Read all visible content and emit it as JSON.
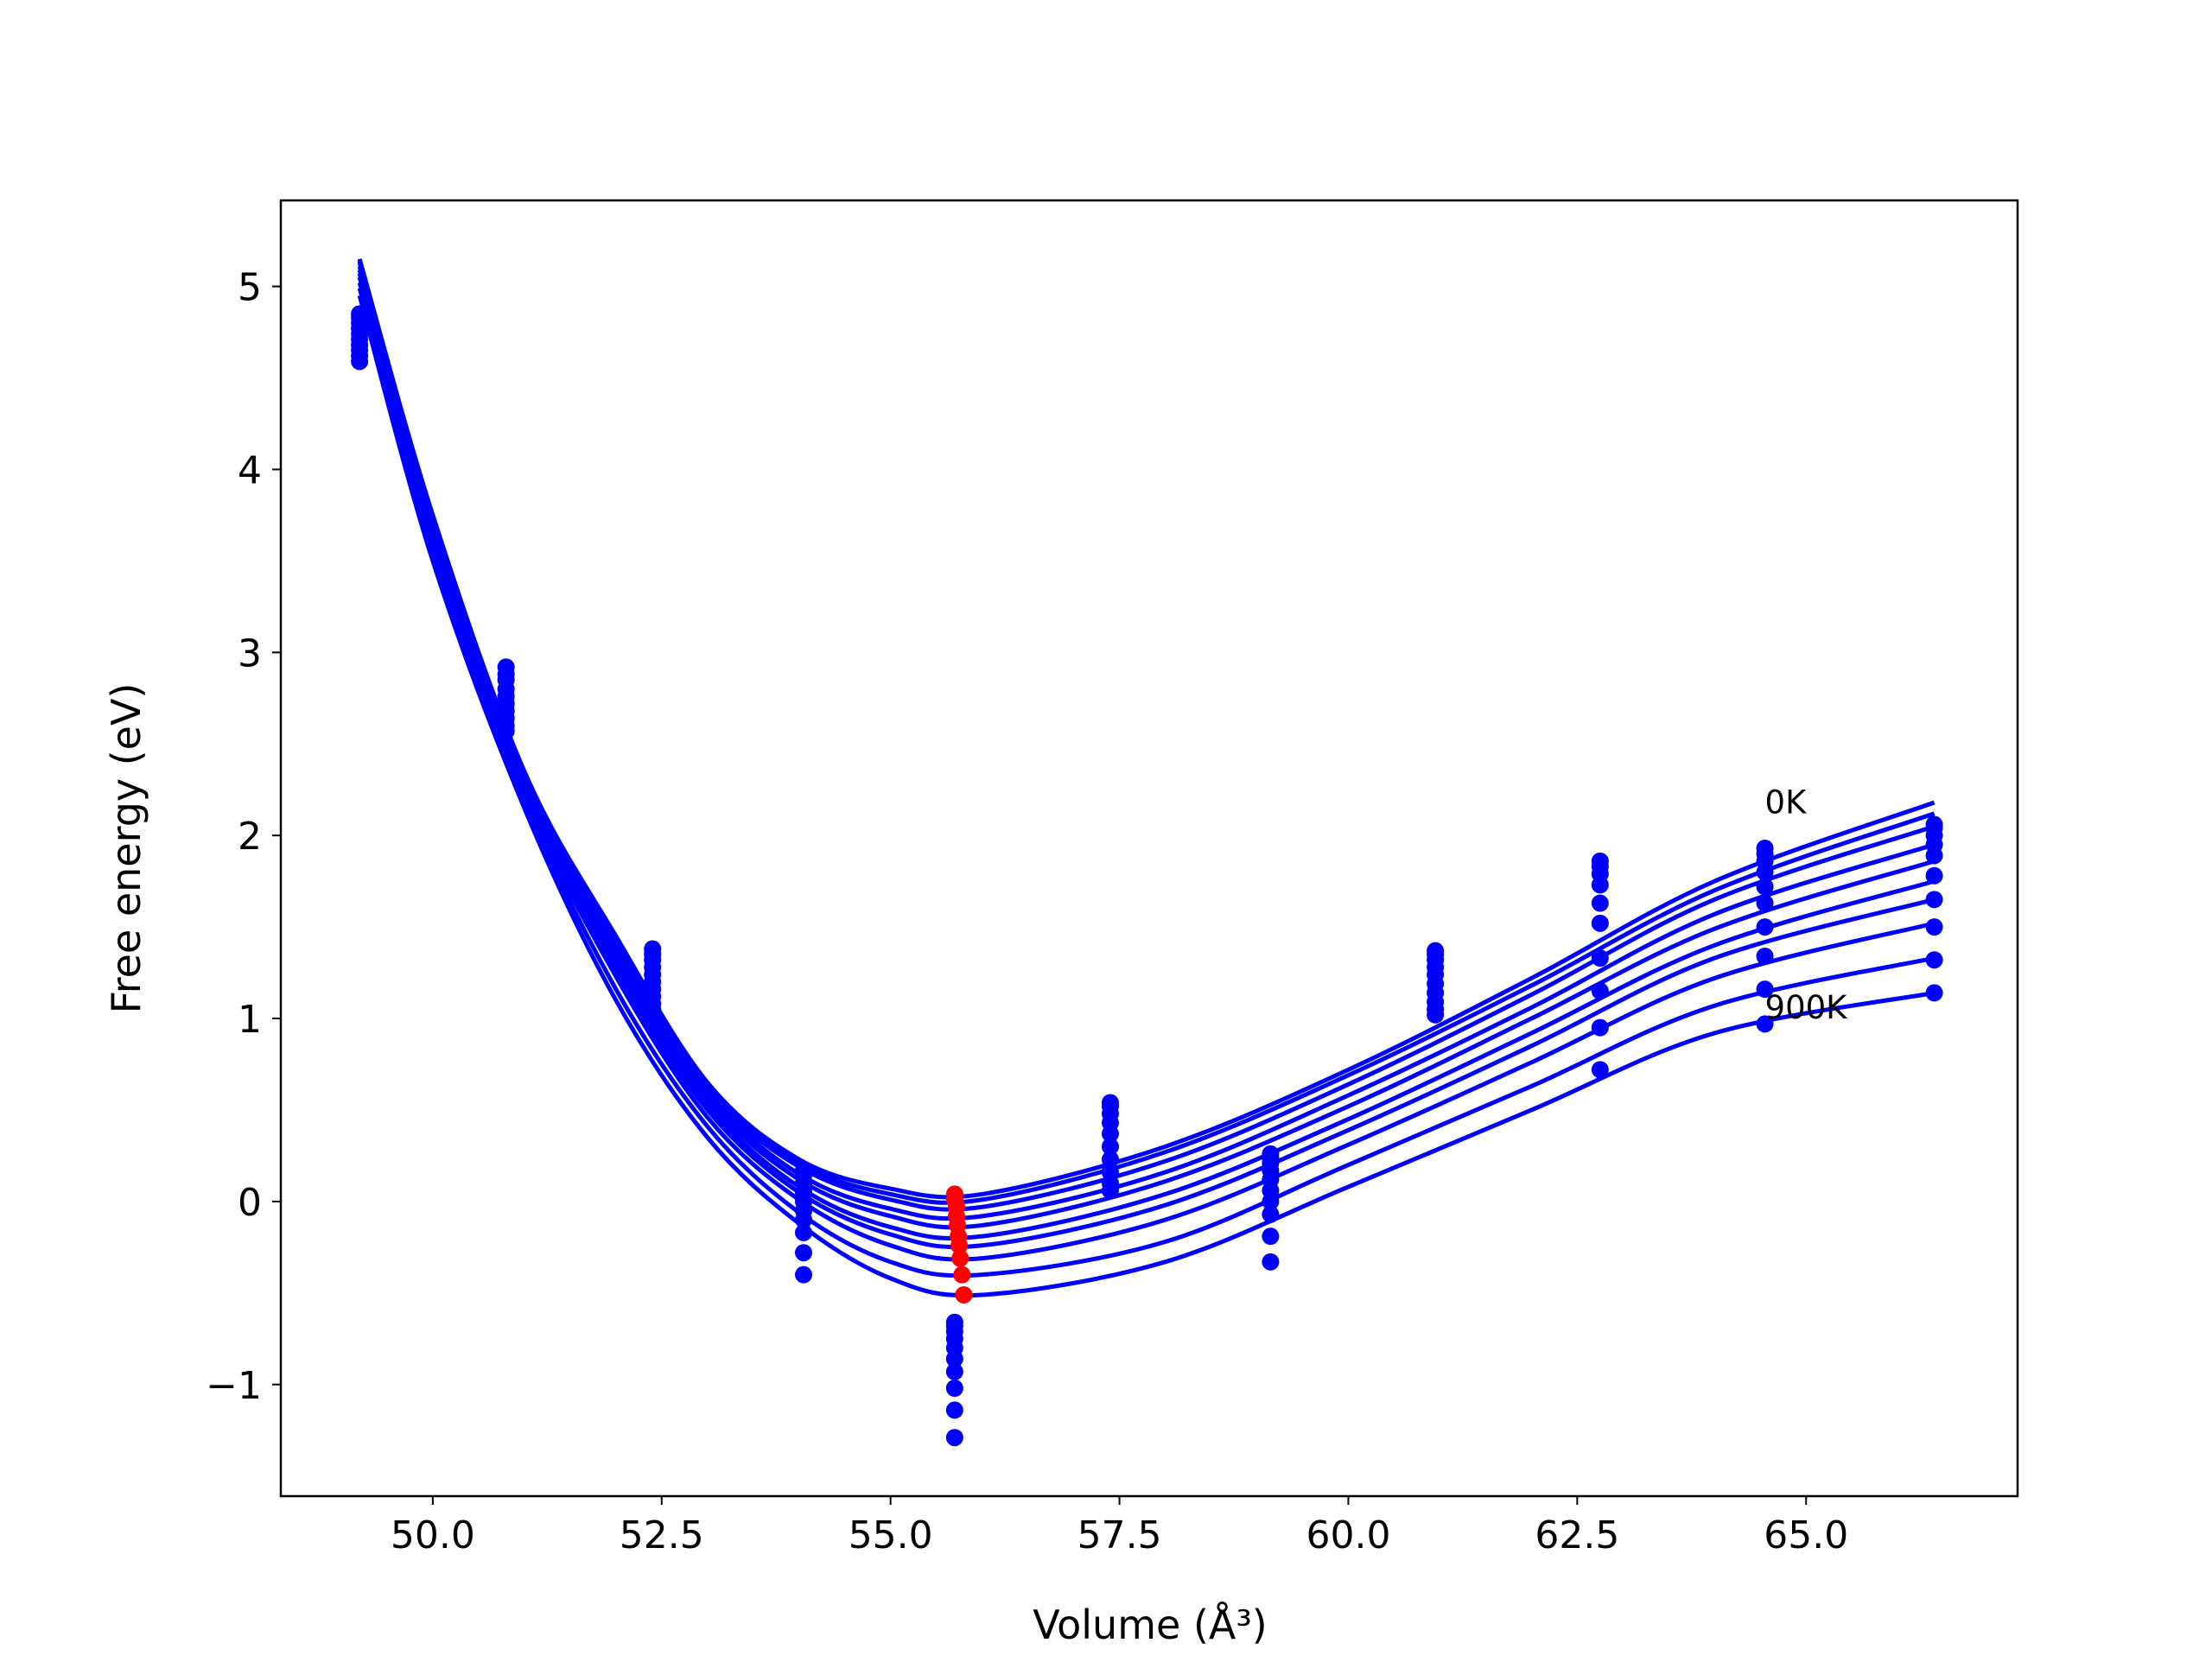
{
  "chart_data": {
    "type": "line",
    "x_label": "Volume (Å³)",
    "y_label": "Free energy (eV)",
    "xlim": [
      48.34,
      67.31
    ],
    "ylim": [
      -1.61,
      5.47
    ],
    "xticks": [
      {
        "value": 50,
        "label": "50.0"
      },
      {
        "value": 52.5,
        "label": "52.5"
      },
      {
        "value": 55,
        "label": "55.0"
      },
      {
        "value": 57.5,
        "label": "57.5"
      },
      {
        "value": 60,
        "label": "60.0"
      },
      {
        "value": 62.5,
        "label": "62.5"
      },
      {
        "value": 65,
        "label": "65.0"
      }
    ],
    "yticks": [
      {
        "value": -1,
        "label": "−1"
      },
      0,
      1,
      2,
      3,
      4,
      5
    ],
    "x": [
      49.2,
      50,
      51,
      52,
      53,
      54,
      55,
      56,
      58,
      60,
      62,
      64,
      66.4
    ],
    "series": [
      {
        "color": "#0000ff",
        "values": [
          5.15,
          3.75,
          2.35,
          1.45,
          0.65,
          0.23,
          0.07,
          0.04,
          0.3,
          0.72,
          1.22,
          1.75,
          2.18
        ]
      },
      {
        "color": "#0000ff",
        "values": [
          5.14,
          3.74,
          2.34,
          1.43,
          0.63,
          0.21,
          0.04,
          0.01,
          0.27,
          0.69,
          1.18,
          1.7,
          2.12
        ]
      },
      {
        "color": "#0000ff",
        "values": [
          5.13,
          3.72,
          2.33,
          1.41,
          0.61,
          0.19,
          0.01,
          -0.03,
          0.22,
          0.64,
          1.13,
          1.65,
          2.05
        ]
      },
      {
        "color": "#0000ff",
        "values": [
          5.11,
          3.7,
          2.31,
          1.37,
          0.59,
          0.15,
          -0.04,
          -0.08,
          0.16,
          0.58,
          1.06,
          1.57,
          1.95
        ]
      },
      {
        "color": "#0000ff",
        "values": [
          5.09,
          3.67,
          2.29,
          1.34,
          0.56,
          0.12,
          -0.08,
          -0.13,
          0.11,
          0.52,
          1.0,
          1.49,
          1.86
        ]
      },
      {
        "color": "#0000ff",
        "values": [
          5.07,
          3.65,
          2.27,
          1.3,
          0.53,
          0.08,
          -0.14,
          -0.19,
          0.04,
          0.45,
          0.92,
          1.4,
          1.75
        ]
      },
      {
        "color": "#0000ff",
        "values": [
          5.05,
          3.62,
          2.25,
          1.27,
          0.5,
          0.05,
          -0.18,
          -0.24,
          -0.02,
          0.39,
          0.85,
          1.33,
          1.65
        ]
      },
      {
        "color": "#0000ff",
        "values": [
          5.02,
          3.59,
          2.22,
          1.23,
          0.46,
          0.01,
          -0.24,
          -0.31,
          -0.1,
          0.31,
          0.76,
          1.22,
          1.52
        ]
      },
      {
        "color": "#0000ff",
        "values": [
          4.99,
          3.55,
          2.19,
          1.16,
          0.41,
          -0.06,
          -0.33,
          -0.4,
          -0.22,
          0.2,
          0.63,
          1.07,
          1.33
        ]
      },
      {
        "color": "#0000ff",
        "values": [
          4.95,
          3.5,
          2.15,
          1.1,
          0.35,
          -0.12,
          -0.42,
          -0.51,
          -0.33,
          0.08,
          0.5,
          0.92,
          1.14
        ]
      }
    ],
    "points_color": "#0000ff",
    "points": [
      {
        "x": 49.2,
        "values": [
          4.85,
          4.83,
          4.8,
          4.77,
          4.74,
          4.71,
          4.68,
          4.65,
          4.62,
          4.59
        ]
      },
      {
        "x": 50.8,
        "values": [
          2.92,
          2.88,
          2.85,
          2.8,
          2.76,
          2.72,
          2.68,
          2.64,
          2.6,
          2.57
        ]
      },
      {
        "x": 52.4,
        "values": [
          1.38,
          1.35,
          1.32,
          1.28,
          1.24,
          1.2,
          1.16,
          1.12,
          1.08,
          1.05
        ]
      },
      {
        "x": 54.05,
        "values": [
          0.17,
          0.14,
          0.1,
          0.05,
          0.0,
          -0.05,
          -0.1,
          -0.17,
          -0.28,
          -0.4
        ]
      },
      {
        "x": 55.7,
        "values": [
          -0.66,
          -0.68,
          -0.71,
          -0.75,
          -0.8,
          -0.86,
          -0.93,
          -1.02,
          -1.14,
          -1.29
        ]
      },
      {
        "x": 57.4,
        "values": [
          0.54,
          0.52,
          0.48,
          0.43,
          0.37,
          0.3,
          0.23,
          0.16,
          0.1,
          0.06
        ]
      },
      {
        "x": 59.15,
        "values": [
          0.26,
          0.24,
          0.21,
          0.17,
          0.12,
          0.06,
          0.0,
          -0.07,
          -0.19,
          -0.33
        ]
      },
      {
        "x": 60.95,
        "values": [
          1.37,
          1.35,
          1.32,
          1.28,
          1.24,
          1.19,
          1.14,
          1.09,
          1.05,
          1.02
        ]
      },
      {
        "x": 62.75,
        "values": [
          1.86,
          1.83,
          1.79,
          1.73,
          1.63,
          1.52,
          1.33,
          1.15,
          0.95,
          0.72
        ]
      },
      {
        "x": 64.55,
        "values": [
          1.93,
          1.9,
          1.86,
          1.8,
          1.72,
          1.63,
          1.5,
          1.34,
          1.16,
          0.97
        ]
      },
      {
        "x": 66.4,
        "values": [
          2.06,
          2.04,
          2.0,
          1.95,
          1.89,
          1.78,
          1.65,
          1.5,
          1.32,
          1.14
        ]
      }
    ],
    "minima": {
      "color": "#ff0000",
      "x": [
        55.7,
        55.7,
        55.72,
        55.72,
        55.73,
        55.74,
        55.75,
        55.76,
        55.78,
        55.8
      ],
      "values": [
        0.04,
        0.01,
        -0.03,
        -0.08,
        -0.13,
        -0.19,
        -0.24,
        -0.31,
        -0.4,
        -0.51
      ]
    },
    "annotations": [
      {
        "text": "0K",
        "x": 64.55,
        "y": 2.12
      },
      {
        "text": "900K",
        "x": 64.55,
        "y": 1.0
      }
    ]
  }
}
